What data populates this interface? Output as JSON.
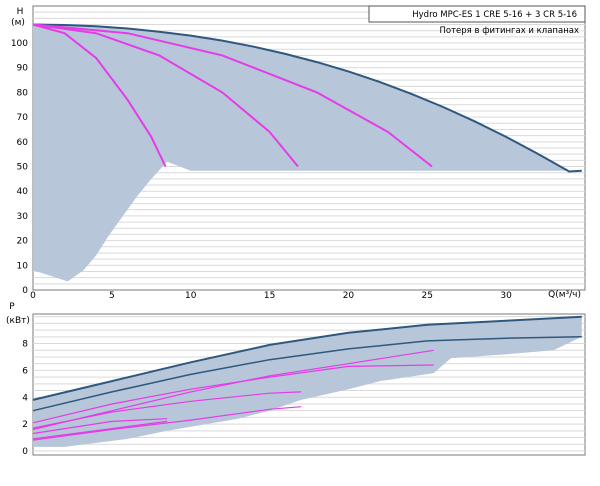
{
  "chart_data": [
    {
      "type": "line",
      "y_axis_label_top": "H",
      "y_axis_label_unit": "(м)",
      "x_axis_label": "Q(м³/ч)",
      "xlim": [
        0,
        35
      ],
      "ylim": [
        0,
        115
      ],
      "x_ticks": [
        0,
        5,
        10,
        15,
        20,
        25,
        30
      ],
      "y_ticks": [
        0,
        10,
        20,
        30,
        40,
        50,
        60,
        70,
        80,
        90,
        100
      ],
      "grid": true,
      "legend_box_line1": "Hydro MPC-ES 1 CRE 5-16  +  3 CR 5-16",
      "legend_box_line2": "Потеря в фитингах и клапанах",
      "colors": {
        "envelope": "#b7c6d8",
        "envelope_edge": "#2f587f",
        "pump_curve": "#e63be8"
      },
      "envelope_upper": [
        [
          0,
          107.5
        ],
        [
          2,
          107.3
        ],
        [
          4,
          106.8
        ],
        [
          6,
          105.9
        ],
        [
          8,
          104.6
        ],
        [
          10,
          103.0
        ],
        [
          12,
          101.0
        ],
        [
          14,
          98.5
        ],
        [
          16,
          95.6
        ],
        [
          18,
          92.3
        ],
        [
          20,
          88.5
        ],
        [
          22,
          84.2
        ],
        [
          24,
          79.4
        ],
        [
          26,
          74.1
        ],
        [
          28,
          68.3
        ],
        [
          30,
          62.0
        ],
        [
          32,
          55.2
        ],
        [
          34,
          48.0
        ],
        [
          34.8,
          48.3
        ]
      ],
      "envelope_lower": [
        [
          34.8,
          48.3
        ],
        [
          25.4,
          48.3
        ],
        [
          17,
          48.3
        ],
        [
          10,
          48.3
        ],
        [
          8.5,
          52
        ],
        [
          7.5,
          45
        ],
        [
          6.6,
          38
        ],
        [
          5.7,
          30
        ],
        [
          4.8,
          22
        ],
        [
          4.0,
          14
        ],
        [
          3.2,
          8
        ],
        [
          2.2,
          3.5
        ],
        [
          1,
          6
        ],
        [
          0,
          8
        ]
      ],
      "series": [
        {
          "points": [
            [
              0,
              107.5
            ],
            [
              2,
              104
            ],
            [
              4,
              94
            ],
            [
              6,
              77
            ],
            [
              7.5,
              62
            ],
            [
              8.4,
              50
            ]
          ]
        },
        {
          "points": [
            [
              0,
              107.5
            ],
            [
              4,
              104
            ],
            [
              8,
              95
            ],
            [
              12,
              80
            ],
            [
              15,
              64
            ],
            [
              16.8,
              50
            ]
          ]
        },
        {
          "points": [
            [
              0,
              107.5
            ],
            [
              6,
              104
            ],
            [
              12,
              95
            ],
            [
              18,
              80
            ],
            [
              22.5,
              64
            ],
            [
              25.3,
              50
            ]
          ]
        }
      ]
    },
    {
      "type": "line",
      "y_axis_label_top": "P",
      "y_axis_label_unit": "(кВт)",
      "xlim": [
        0,
        35
      ],
      "ylim": [
        -0.3,
        10.2
      ],
      "y_ticks": [
        0,
        2,
        4,
        6,
        8
      ],
      "grid": true,
      "colors": {
        "envelope": "#b7c6d8",
        "envelope_edge": "#2f587f",
        "pump_curve": "#e63be8"
      },
      "envelope_upper": [
        [
          0,
          3.8
        ],
        [
          5,
          5.2
        ],
        [
          10,
          6.6
        ],
        [
          15,
          7.9
        ],
        [
          20,
          8.8
        ],
        [
          25,
          9.4
        ],
        [
          30,
          9.7
        ],
        [
          34.8,
          10.0
        ]
      ],
      "envelope_lower": [
        [
          34.8,
          8.5
        ],
        [
          33,
          7.5
        ],
        [
          30,
          7.2
        ],
        [
          26.5,
          6.9
        ],
        [
          25.4,
          5.8
        ],
        [
          22,
          5.2
        ],
        [
          20,
          4.6
        ],
        [
          17,
          3.8
        ],
        [
          15,
          3.0
        ],
        [
          13,
          2.4
        ],
        [
          10,
          1.8
        ],
        [
          8.5,
          1.5
        ],
        [
          6,
          0.9
        ],
        [
          4,
          0.6
        ],
        [
          2,
          0.3
        ],
        [
          0,
          0.3
        ]
      ],
      "series": [
        {
          "points": [
            [
              0,
              3.0
            ],
            [
              5,
              4.4
            ],
            [
              10,
              5.7
            ],
            [
              15,
              6.8
            ],
            [
              20,
              7.6
            ],
            [
              25,
              8.2
            ],
            [
              30,
              8.4
            ],
            [
              34.8,
              8.5
            ]
          ]
        },
        {
          "points": [
            [
              0,
              2.1
            ],
            [
              5,
              3.5
            ],
            [
              10,
              4.6
            ],
            [
              15,
              5.5
            ],
            [
              20,
              6.3
            ],
            [
              25.4,
              6.4
            ]
          ]
        },
        {
          "points": [
            [
              0,
              1.7
            ],
            [
              5,
              2.9
            ],
            [
              10,
              3.7
            ],
            [
              15,
              4.3
            ],
            [
              17,
              4.4
            ]
          ]
        },
        {
          "points": [
            [
              0,
              1.3
            ],
            [
              5,
              2.2
            ],
            [
              8.5,
              2.4
            ]
          ]
        },
        {
          "points": [
            [
              0,
              0.8
            ],
            [
              5,
              1.6
            ],
            [
              10,
              2.3
            ],
            [
              15,
              3.1
            ],
            [
              17,
              3.3
            ]
          ]
        },
        {
          "points": [
            [
              0,
              0.9
            ],
            [
              8.5,
              2.2
            ]
          ]
        },
        {
          "points": [
            [
              0,
              1.6
            ],
            [
              5,
              3.0
            ],
            [
              10,
              4.4
            ],
            [
              15,
              5.6
            ],
            [
              20,
              6.5
            ],
            [
              25.4,
              7.5
            ]
          ]
        }
      ]
    }
  ]
}
